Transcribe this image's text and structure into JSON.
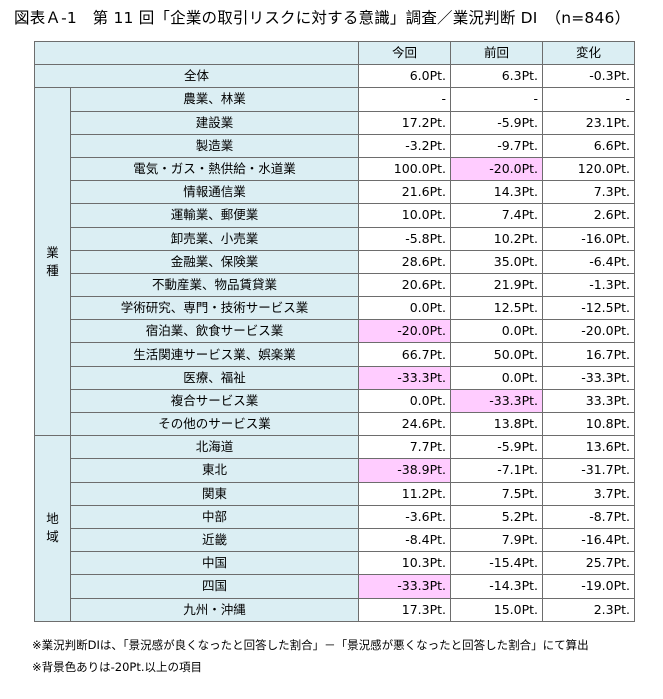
{
  "title": "図表Ａ-1　第 11 回「企業の取引リスクに対する意識」調査／業況判断 DI　（n=846）",
  "headers": {
    "current": "今回",
    "previous": "前回",
    "change": "変化"
  },
  "total": {
    "label": "全体",
    "current": "6.0Pt.",
    "previous": "6.3Pt.",
    "change": "-0.3Pt."
  },
  "groups": [
    {
      "name_chars": [
        "業",
        "種"
      ],
      "rows": [
        {
          "label": "農業、林業",
          "current": "-",
          "previous": "-",
          "change": "-"
        },
        {
          "label": "建設業",
          "current": "17.2Pt.",
          "previous": "-5.9Pt.",
          "change": "23.1Pt."
        },
        {
          "label": "製造業",
          "current": "-3.2Pt.",
          "previous": "-9.7Pt.",
          "change": "6.6Pt."
        },
        {
          "label": "電気・ガス・熱供給・水道業",
          "current": "100.0Pt.",
          "previous": "-20.0Pt.",
          "change": "120.0Pt.",
          "hl_previous": true
        },
        {
          "label": "情報通信業",
          "current": "21.6Pt.",
          "previous": "14.3Pt.",
          "change": "7.3Pt."
        },
        {
          "label": "運輸業、郵便業",
          "current": "10.0Pt.",
          "previous": "7.4Pt.",
          "change": "2.6Pt."
        },
        {
          "label": "卸売業、小売業",
          "current": "-5.8Pt.",
          "previous": "10.2Pt.",
          "change": "-16.0Pt."
        },
        {
          "label": "金融業、保険業",
          "current": "28.6Pt.",
          "previous": "35.0Pt.",
          "change": "-6.4Pt."
        },
        {
          "label": "不動産業、物品賃貸業",
          "current": "20.6Pt.",
          "previous": "21.9Pt.",
          "change": "-1.3Pt."
        },
        {
          "label": "学術研究、専門・技術サービス業",
          "current": "0.0Pt.",
          "previous": "12.5Pt.",
          "change": "-12.5Pt."
        },
        {
          "label": "宿泊業、飲食サービス業",
          "current": "-20.0Pt.",
          "previous": "0.0Pt.",
          "change": "-20.0Pt.",
          "hl_current": true
        },
        {
          "label": "生活関連サービス業、娯楽業",
          "current": "66.7Pt.",
          "previous": "50.0Pt.",
          "change": "16.7Pt."
        },
        {
          "label": "医療、福祉",
          "current": "-33.3Pt.",
          "previous": "0.0Pt.",
          "change": "-33.3Pt.",
          "hl_current": true
        },
        {
          "label": "複合サービス業",
          "current": "0.0Pt.",
          "previous": "-33.3Pt.",
          "change": "33.3Pt.",
          "hl_previous": true
        },
        {
          "label": "その他のサービス業",
          "current": "24.6Pt.",
          "previous": "13.8Pt.",
          "change": "10.8Pt."
        }
      ]
    },
    {
      "name_chars": [
        "地",
        "域"
      ],
      "rows": [
        {
          "label": "北海道",
          "current": "7.7Pt.",
          "previous": "-5.9Pt.",
          "change": "13.6Pt."
        },
        {
          "label": "東北",
          "current": "-38.9Pt.",
          "previous": "-7.1Pt.",
          "change": "-31.7Pt.",
          "hl_current": true
        },
        {
          "label": "関東",
          "current": "11.2Pt.",
          "previous": "7.5Pt.",
          "change": "3.7Pt."
        },
        {
          "label": "中部",
          "current": "-3.6Pt.",
          "previous": "5.2Pt.",
          "change": "-8.7Pt."
        },
        {
          "label": "近畿",
          "current": "-8.4Pt.",
          "previous": "7.9Pt.",
          "change": "-16.4Pt."
        },
        {
          "label": "中国",
          "current": "10.3Pt.",
          "previous": "-15.4Pt.",
          "change": "25.7Pt."
        },
        {
          "label": "四国",
          "current": "-33.3Pt.",
          "previous": "-14.3Pt.",
          "change": "-19.0Pt.",
          "hl_current": true
        },
        {
          "label": "九州・沖縄",
          "current": "17.3Pt.",
          "previous": "15.0Pt.",
          "change": "2.3Pt."
        }
      ]
    }
  ],
  "notes": [
    "※業況判断DIは、「景況感が良くなったと回答した割合」－「景況感が悪くなったと回答した割合」にて算出",
    "※背景色ありは-20Pt.以上の項目"
  ]
}
